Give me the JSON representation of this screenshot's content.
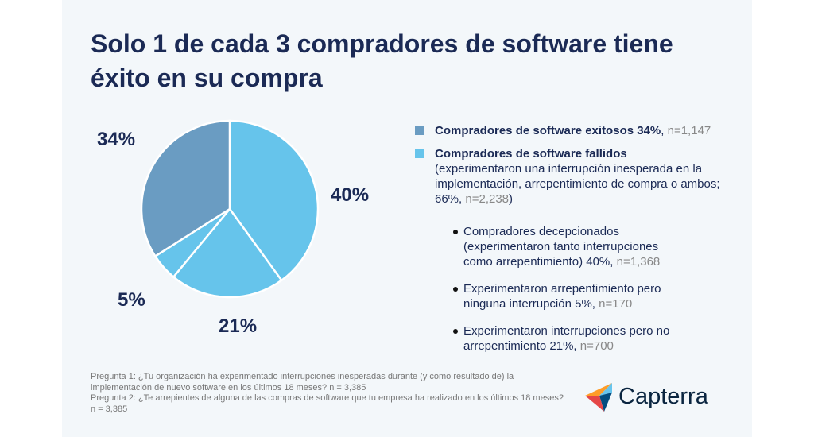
{
  "title": "Solo 1 de cada 3 compradores de software tiene éxito en su compra",
  "chart_data": {
    "type": "pie",
    "slices": [
      {
        "label": "40%",
        "value": 40,
        "color": "#66c4eb"
      },
      {
        "label": "21%",
        "value": 21,
        "color": "#66c4eb"
      },
      {
        "label": "5%",
        "value": 5,
        "color": "#66c4eb"
      },
      {
        "label": "34%",
        "value": 34,
        "color": "#6a9cc2"
      }
    ]
  },
  "legend": {
    "success": {
      "bold": "Compradores de software exitosos 34%",
      "n": "n=1,147",
      "color": "#6a9cc2"
    },
    "failed": {
      "bold": "Compradores de software fallidos",
      "text": "(experimentaron una interrupción inesperada en la implementación, arrepentimiento de compra o ambos; 66%,",
      "n": "n=2,238",
      "close": ")",
      "color": "#66c4eb"
    },
    "subs": [
      {
        "text": "Compradores decepcionados (experimentaron tanto interrupciones como arrepentimiento) 40%,",
        "n": "n=1,368"
      },
      {
        "text": "Experimentaron arrepentimiento pero ninguna interrupción 5%,",
        "n": "n=170"
      },
      {
        "text": "Experimentaron interrupciones pero no arrepentimiento 21%,",
        "n": "n=700"
      }
    ]
  },
  "notes": {
    "q1": "Pregunta 1: ¿Tu organización ha experimentado interrupciones inesperadas durante (y como resultado de) la implementación de nuevo software en los últimos 18 meses? n = 3,385",
    "q2": "Pregunta 2: ¿Te arrepientes de alguna de las compras de software que tu empresa ha realizado en los últimos 18 meses? n = 3,385"
  },
  "logo": "Capterra"
}
